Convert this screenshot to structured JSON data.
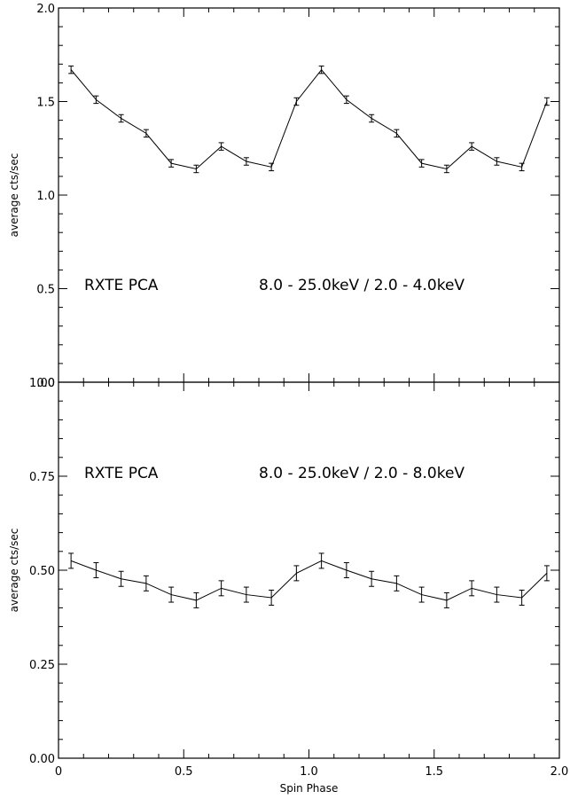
{
  "chart_data": [
    {
      "type": "line",
      "panel": "top",
      "ylabel": "average cts/sec",
      "xlabel": "",
      "xlim": [
        0,
        2.0
      ],
      "ylim": [
        0,
        2.0
      ],
      "yticks": [
        "0.0",
        "0.5",
        "1.0",
        "1.5",
        "2.0"
      ],
      "annotations": {
        "instrument": "RXTE PCA",
        "band": "8.0 - 25.0keV / 2.0 - 4.0keV"
      },
      "grid": false,
      "series": [
        {
          "x": [
            0.05,
            0.15,
            0.25,
            0.35,
            0.45,
            0.55,
            0.65,
            0.75,
            0.85,
            0.95,
            1.05,
            1.15,
            1.25,
            1.35,
            1.45,
            1.55,
            1.65,
            1.75,
            1.85,
            1.95
          ],
          "y": [
            1.67,
            1.51,
            1.41,
            1.33,
            1.17,
            1.14,
            1.26,
            1.18,
            1.15,
            1.5,
            1.67,
            1.51,
            1.41,
            1.33,
            1.17,
            1.14,
            1.26,
            1.18,
            1.15,
            1.5
          ],
          "err": [
            0.02,
            0.02,
            0.02,
            0.02,
            0.02,
            0.02,
            0.02,
            0.02,
            0.02,
            0.02,
            0.02,
            0.02,
            0.02,
            0.02,
            0.02,
            0.02,
            0.02,
            0.02,
            0.02,
            0.02
          ]
        }
      ]
    },
    {
      "type": "line",
      "panel": "bottom",
      "ylabel": "average cts/sec",
      "xlabel": "Spin Phase",
      "xlim": [
        0,
        2.0
      ],
      "ylim": [
        0,
        1.0
      ],
      "xticks": [
        "0",
        "0.5",
        "1.0",
        "1.5",
        "2.0"
      ],
      "yticks": [
        "0.00",
        "0.25",
        "0.50",
        "0.75",
        "1.00"
      ],
      "annotations": {
        "instrument": "RXTE PCA",
        "band": "8.0 - 25.0keV / 2.0 - 8.0keV"
      },
      "grid": false,
      "series": [
        {
          "x": [
            0.05,
            0.15,
            0.25,
            0.35,
            0.45,
            0.55,
            0.65,
            0.75,
            0.85,
            0.95,
            1.05,
            1.15,
            1.25,
            1.35,
            1.45,
            1.55,
            1.65,
            1.75,
            1.85,
            1.95
          ],
          "y": [
            0.525,
            0.5,
            0.477,
            0.465,
            0.435,
            0.42,
            0.452,
            0.435,
            0.427,
            0.492,
            0.525,
            0.5,
            0.477,
            0.465,
            0.435,
            0.42,
            0.452,
            0.435,
            0.427,
            0.492
          ],
          "err": [
            0.02,
            0.02,
            0.02,
            0.02,
            0.02,
            0.02,
            0.02,
            0.02,
            0.02,
            0.02,
            0.02,
            0.02,
            0.02,
            0.02,
            0.02,
            0.02,
            0.02,
            0.02,
            0.02,
            0.02
          ]
        }
      ]
    }
  ]
}
